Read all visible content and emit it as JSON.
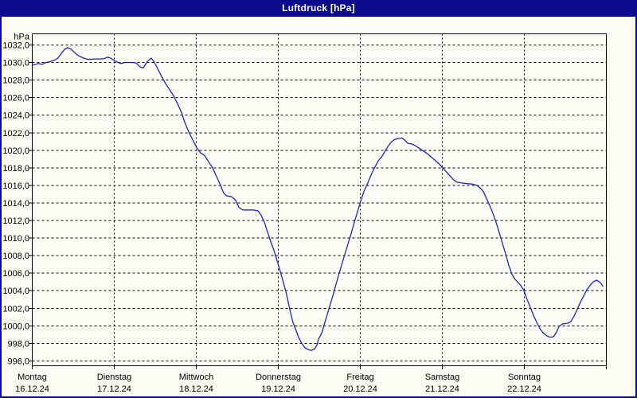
{
  "window": {
    "title": "Luftdruck [hPa]"
  },
  "colors": {
    "titlebar_bg": "#0a0a8c",
    "title_text": "#ffffff",
    "frame": "#0a0a8c",
    "content_bg": "#fcfcf4",
    "grid": "#000000",
    "axis": "#000000",
    "text": "#000000",
    "line": "#2222c2"
  },
  "chart_data": {
    "type": "line",
    "title": "Luftdruck [hPa]",
    "grid": "dashed",
    "legend": "none",
    "y_axis": {
      "unit_label": "hPa",
      "min": 996.0,
      "max": 1032.0,
      "tick_step": 2.0,
      "tick_labels": [
        "1032,0",
        "1030,0",
        "1028,0",
        "1026,0",
        "1024,0",
        "1022,0",
        "1020,0",
        "1018,0",
        "1016,0",
        "1014,0",
        "1012,0",
        "1010,0",
        "1008,0",
        "1006,0",
        "1004,0",
        "1002,0",
        "1000,0",
        "998,0",
        "996,0"
      ]
    },
    "x_axis": {
      "days": [
        {
          "label": "Montag",
          "date": "16.12.24"
        },
        {
          "label": "Dienstag",
          "date": "17.12.24"
        },
        {
          "label": "Mittwoch",
          "date": "18.12.24"
        },
        {
          "label": "Donnerstag",
          "date": "19.12.24"
        },
        {
          "label": "Freitag",
          "date": "20.12.24"
        },
        {
          "label": "Samstag",
          "date": "21.12.24"
        },
        {
          "label": "Sonntag",
          "date": "22.12.24"
        }
      ],
      "span_days": 7
    },
    "series": [
      {
        "name": "Luftdruck",
        "unit": "hPa",
        "points": [
          [
            0.005,
            1029.7
          ],
          [
            0.044,
            1029.8
          ],
          [
            0.073,
            1029.9
          ],
          [
            0.121,
            1029.8
          ],
          [
            0.17,
            1030.0
          ],
          [
            0.218,
            1030.1
          ],
          [
            0.267,
            1030.25
          ],
          [
            0.306,
            1030.45
          ],
          [
            0.345,
            1030.9
          ],
          [
            0.393,
            1031.5
          ],
          [
            0.432,
            1031.7
          ],
          [
            0.471,
            1031.55
          ],
          [
            0.51,
            1031.2
          ],
          [
            0.558,
            1030.8
          ],
          [
            0.626,
            1030.5
          ],
          [
            0.684,
            1030.35
          ],
          [
            0.752,
            1030.4
          ],
          [
            0.83,
            1030.4
          ],
          [
            0.879,
            1030.45
          ],
          [
            0.917,
            1030.6
          ],
          [
            0.956,
            1030.5
          ],
          [
            1.005,
            1030.2
          ],
          [
            1.044,
            1030.0
          ],
          [
            1.083,
            1029.9
          ],
          [
            1.131,
            1030.0
          ],
          [
            1.218,
            1030.0
          ],
          [
            1.267,
            1029.95
          ],
          [
            1.315,
            1029.5
          ],
          [
            1.354,
            1029.4
          ],
          [
            1.403,
            1030.1
          ],
          [
            1.451,
            1030.5
          ],
          [
            1.49,
            1030.0
          ],
          [
            1.529,
            1029.3
          ],
          [
            1.578,
            1028.4
          ],
          [
            1.626,
            1027.6
          ],
          [
            1.675,
            1026.9
          ],
          [
            1.723,
            1026.2
          ],
          [
            1.772,
            1025.3
          ],
          [
            1.82,
            1024.3
          ],
          [
            1.859,
            1023.2
          ],
          [
            1.908,
            1022.1
          ],
          [
            1.956,
            1021.2
          ],
          [
            2.005,
            1020.3
          ],
          [
            2.053,
            1019.7
          ],
          [
            2.102,
            1019.4
          ],
          [
            2.15,
            1018.7
          ],
          [
            2.199,
            1018.0
          ],
          [
            2.248,
            1017.0
          ],
          [
            2.296,
            1016.0
          ],
          [
            2.335,
            1015.1
          ],
          [
            2.374,
            1014.8
          ],
          [
            2.432,
            1014.7
          ],
          [
            2.48,
            1014.3
          ],
          [
            2.519,
            1013.5
          ],
          [
            2.568,
            1013.2
          ],
          [
            2.694,
            1013.2
          ],
          [
            2.752,
            1013.1
          ],
          [
            2.791,
            1012.6
          ],
          [
            2.83,
            1011.8
          ],
          [
            2.869,
            1010.7
          ],
          [
            2.908,
            1009.6
          ],
          [
            2.947,
            1008.6
          ],
          [
            2.985,
            1007.4
          ],
          [
            3.024,
            1006.2
          ],
          [
            3.063,
            1004.9
          ],
          [
            3.092,
            1003.9
          ],
          [
            3.121,
            1002.7
          ],
          [
            3.15,
            1001.5
          ],
          [
            3.179,
            1000.4
          ],
          [
            3.208,
            999.7
          ],
          [
            3.247,
            998.7
          ],
          [
            3.286,
            998.0
          ],
          [
            3.325,
            997.5
          ],
          [
            3.364,
            997.3
          ],
          [
            3.403,
            997.2
          ],
          [
            3.442,
            997.35
          ],
          [
            3.471,
            997.8
          ],
          [
            3.49,
            998.5
          ],
          [
            3.51,
            998.8
          ],
          [
            3.539,
            999.4
          ],
          [
            3.558,
            1000.1
          ],
          [
            3.587,
            1001.0
          ],
          [
            3.616,
            1001.9
          ],
          [
            3.655,
            1003.1
          ],
          [
            3.694,
            1004.4
          ],
          [
            3.733,
            1005.7
          ],
          [
            3.772,
            1006.9
          ],
          [
            3.81,
            1008.1
          ],
          [
            3.849,
            1009.3
          ],
          [
            3.888,
            1010.5
          ],
          [
            3.927,
            1011.8
          ],
          [
            3.966,
            1013.0
          ],
          [
            4.005,
            1014.2
          ],
          [
            4.044,
            1015.3
          ],
          [
            4.092,
            1016.3
          ],
          [
            4.141,
            1017.4
          ],
          [
            4.18,
            1018.1
          ],
          [
            4.218,
            1018.8
          ],
          [
            4.257,
            1019.2
          ],
          [
            4.296,
            1019.8
          ],
          [
            4.335,
            1020.4
          ],
          [
            4.374,
            1020.9
          ],
          [
            4.413,
            1021.2
          ],
          [
            4.461,
            1021.35
          ],
          [
            4.51,
            1021.4
          ],
          [
            4.549,
            1021.1
          ],
          [
            4.578,
            1020.8
          ],
          [
            4.636,
            1020.7
          ],
          [
            4.675,
            1020.5
          ],
          [
            4.723,
            1020.2
          ],
          [
            4.772,
            1019.9
          ],
          [
            4.82,
            1019.6
          ],
          [
            4.869,
            1019.2
          ],
          [
            4.917,
            1018.8
          ],
          [
            4.966,
            1018.4
          ],
          [
            5.005,
            1018.0
          ],
          [
            5.053,
            1017.5
          ],
          [
            5.092,
            1017.1
          ],
          [
            5.131,
            1016.7
          ],
          [
            5.17,
            1016.4
          ],
          [
            5.218,
            1016.3
          ],
          [
            5.296,
            1016.2
          ],
          [
            5.364,
            1016.15
          ],
          [
            5.422,
            1016.0
          ],
          [
            5.461,
            1015.7
          ],
          [
            5.5,
            1015.3
          ],
          [
            5.539,
            1014.5
          ],
          [
            5.578,
            1013.7
          ],
          [
            5.617,
            1012.8
          ],
          [
            5.655,
            1011.8
          ],
          [
            5.694,
            1010.6
          ],
          [
            5.733,
            1009.4
          ],
          [
            5.772,
            1008.2
          ],
          [
            5.81,
            1006.9
          ],
          [
            5.849,
            1005.9
          ],
          [
            5.878,
            1005.4
          ],
          [
            5.917,
            1005.0
          ],
          [
            5.956,
            1004.6
          ],
          [
            5.995,
            1004.0
          ],
          [
            6.034,
            1003.0
          ],
          [
            6.073,
            1002.1
          ],
          [
            6.112,
            1001.2
          ],
          [
            6.15,
            1000.4
          ],
          [
            6.189,
            999.7
          ],
          [
            6.228,
            999.2
          ],
          [
            6.267,
            998.9
          ],
          [
            6.306,
            998.7
          ],
          [
            6.354,
            998.75
          ],
          [
            6.393,
            999.3
          ],
          [
            6.422,
            999.9
          ],
          [
            6.461,
            1000.2
          ],
          [
            6.529,
            1000.3
          ],
          [
            6.568,
            1000.5
          ],
          [
            6.607,
            1001.1
          ],
          [
            6.646,
            1001.9
          ],
          [
            6.684,
            1002.7
          ],
          [
            6.723,
            1003.4
          ],
          [
            6.762,
            1004.1
          ],
          [
            6.801,
            1004.6
          ],
          [
            6.84,
            1005.0
          ],
          [
            6.879,
            1005.2
          ],
          [
            6.917,
            1005.0
          ],
          [
            6.937,
            1004.8
          ],
          [
            6.956,
            1004.5
          ]
        ]
      }
    ]
  }
}
